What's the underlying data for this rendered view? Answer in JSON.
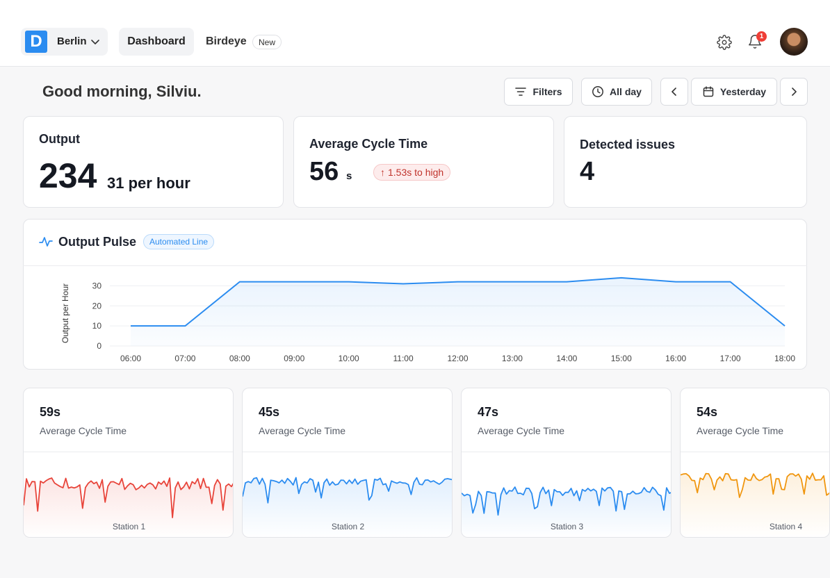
{
  "header": {
    "logo_letter": "D",
    "site": "Berlin",
    "nav": [
      {
        "label": "Dashboard",
        "active": true
      },
      {
        "label": "Birdeye",
        "badge": "New"
      }
    ],
    "notifications": "1",
    "icons": [
      "gear-icon",
      "bell-icon",
      "avatar"
    ]
  },
  "toolbar": {
    "greeting": "Good morning, Silviu.",
    "filters": "Filters",
    "all_day": "All day",
    "date": "Yesterday"
  },
  "kpis": {
    "output": {
      "title": "Output",
      "value": "234",
      "rate": "31 per hour"
    },
    "cycle": {
      "title": "Average Cycle Time",
      "value": "56",
      "unit": "s",
      "warning": "1.53s to high"
    },
    "issues": {
      "title": "Detected issues",
      "value": "4"
    }
  },
  "pulse": {
    "title": "Output Pulse",
    "badge": "Automated Line"
  },
  "chart_data": {
    "type": "area",
    "x": [
      "06:00",
      "07:00",
      "08:00",
      "09:00",
      "10:00",
      "11:00",
      "12:00",
      "13:00",
      "14:00",
      "15:00",
      "16:00",
      "17:00",
      "18:00"
    ],
    "values": [
      10,
      10,
      32,
      32,
      32,
      31,
      32,
      32,
      32,
      34,
      32,
      32,
      10
    ],
    "xlabel": "",
    "ylabel": "Output per Hour",
    "yticks": [
      0,
      10,
      20,
      30
    ],
    "ylim": [
      0,
      35
    ],
    "color": "#2b8cf0",
    "grid": true
  },
  "stations": [
    {
      "value": "59s",
      "label": "Average Cycle Time",
      "name": "Station 1",
      "color": "#e8443a",
      "seed": 11,
      "base": 0.28,
      "amp": 0.55
    },
    {
      "value": "45s",
      "label": "Average Cycle Time",
      "name": "Station 2",
      "color": "#2b8cf0",
      "seed": 23,
      "base": 0.28,
      "amp": 0.35
    },
    {
      "value": "47s",
      "label": "Average Cycle Time",
      "name": "Station 3",
      "color": "#2b8cf0",
      "seed": 37,
      "base": 0.45,
      "amp": 0.4
    },
    {
      "value": "54s",
      "label": "Average Cycle Time",
      "name": "Station 4",
      "color": "#f0960f",
      "seed": 51,
      "base": 0.2,
      "amp": 0.35
    }
  ]
}
